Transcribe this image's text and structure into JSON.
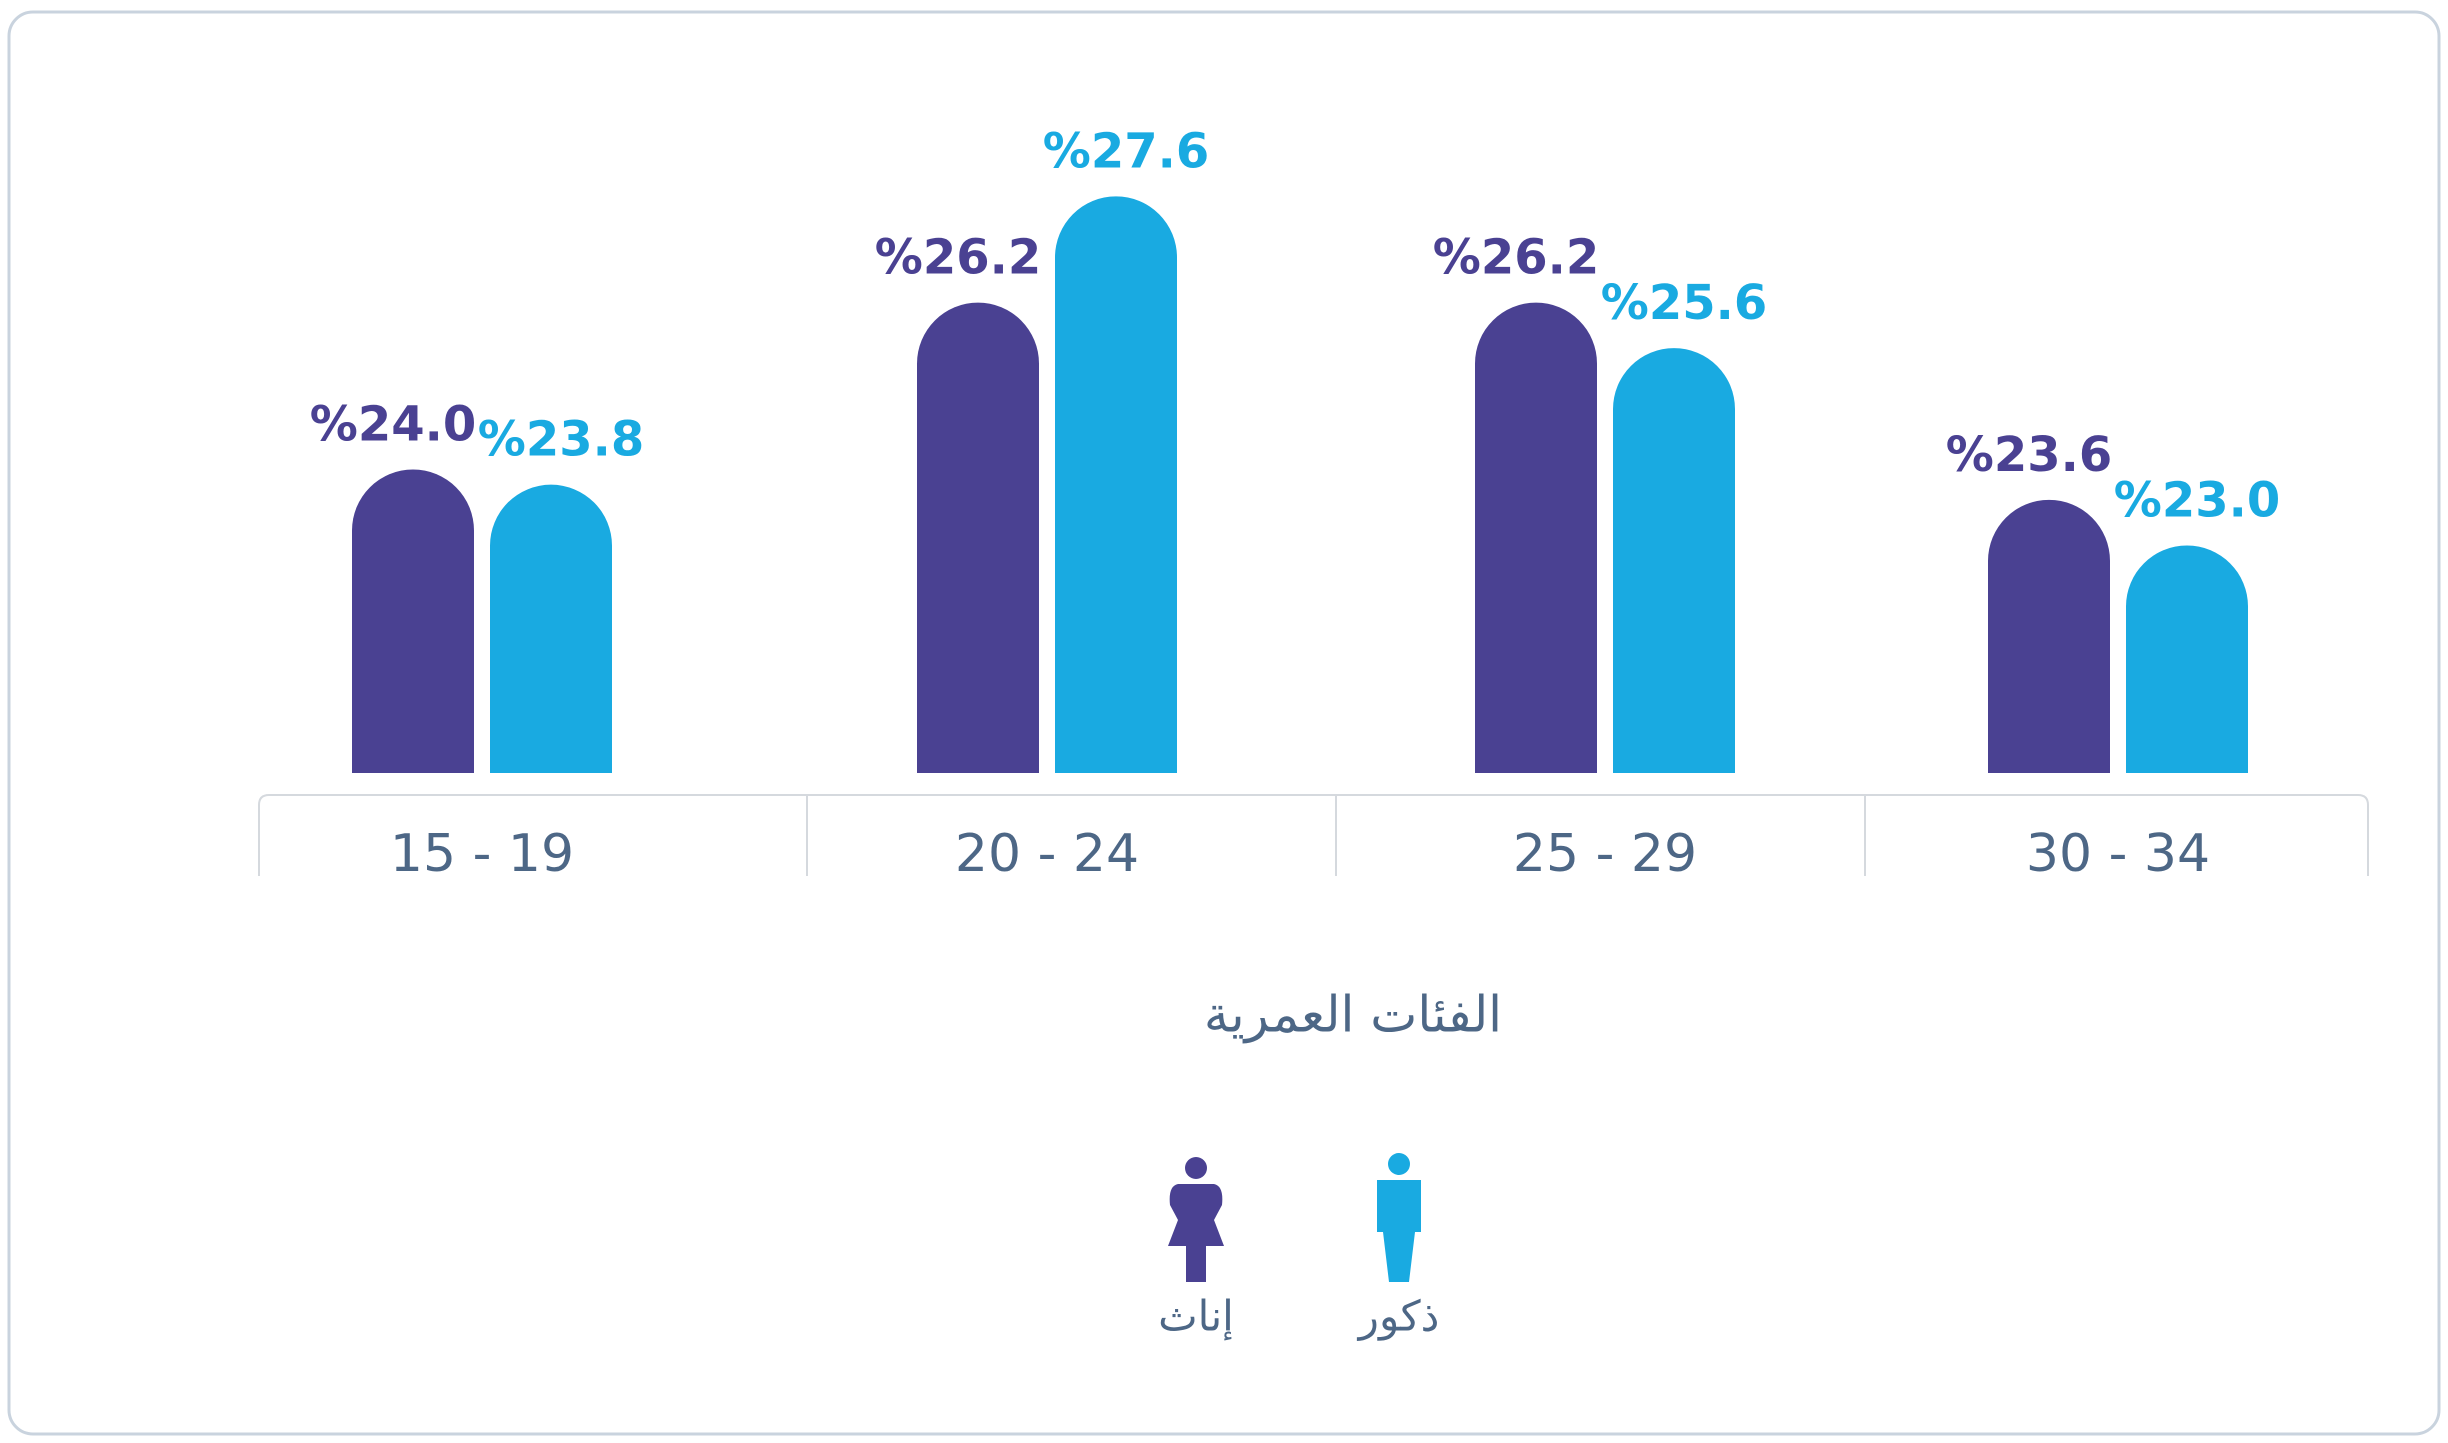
{
  "chart_data": {
    "type": "bar",
    "x_label": "الفئات العمرية",
    "categories": [
      "15 - 19",
      "20 - 24",
      "25 - 29",
      "30 - 34"
    ],
    "series": [
      {
        "name": "إناث",
        "color": "#4a4192",
        "values": [
          24.0,
          26.2,
          26.2,
          23.6
        ],
        "value_labels": [
          "%24.0",
          "%26.2",
          "%26.2",
          "%23.6"
        ]
      },
      {
        "name": "ذكور",
        "color": "#19aae1",
        "values": [
          23.8,
          27.6,
          25.6,
          23.0
        ],
        "value_labels": [
          "%23.8",
          "%27.6",
          "%25.6",
          "%23.0"
        ]
      }
    ],
    "ylim": [
      20,
      28
    ]
  }
}
